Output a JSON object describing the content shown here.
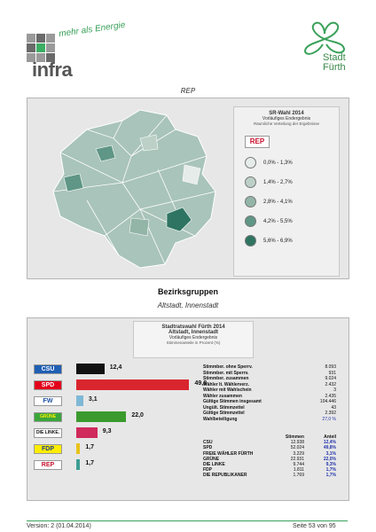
{
  "header": {
    "brand": "infra",
    "slogan": "mehr als Energie",
    "city_line1": "Stadt",
    "city_line2": "Fürth"
  },
  "map_section": {
    "caption": "REP",
    "legend_title": "SR-Wahl 2014",
    "legend_subtitle": "Vorläufiges Endergebnis",
    "legend_note": "Räumliche Verteilung der Ergebnisse",
    "legend_items": [
      {
        "label": "0,0% - 1,3%",
        "color": "#e6ece9"
      },
      {
        "label": "1,4% - 2,7%",
        "color": "#bcd0c8"
      },
      {
        "label": "2,8% - 4,1%",
        "color": "#92b5a8"
      },
      {
        "label": "4,2% - 5,5%",
        "color": "#5f9686"
      },
      {
        "label": "5,6% - 6,9%",
        "color": "#2f7462"
      }
    ]
  },
  "district": {
    "heading": "Bezirksgruppen",
    "subheading": "Altstadt, Innenstadt",
    "box_title1": "Stadtratswahl Fürth 2014",
    "box_title2": "Altstadt, Innenstadt",
    "box_title3": "Vorläufiges Endergebnis",
    "box_note": "Stimmenanteile in Prozent (%)"
  },
  "chart_data": {
    "type": "bar",
    "categories": [
      "CSU",
      "SPD",
      "FW",
      "GRÜNE",
      "DIE LINKE.",
      "FDP",
      "REP"
    ],
    "values": [
      12.4,
      49.8,
      3.1,
      22.0,
      9.3,
      1.7,
      1.7
    ],
    "value_labels": [
      "12,4",
      "49,8",
      "3,1",
      "22,0",
      "9,3",
      "1,7",
      "1,7"
    ],
    "colors": [
      "#111111",
      "#d9262e",
      "#7fb8d6",
      "#3b9a2e",
      "#cf2a5b",
      "#e8c21a",
      "#3d9e93"
    ],
    "logos": [
      {
        "text": "CSU",
        "bg": "#1f5fb4",
        "fg": "#ffffff"
      },
      {
        "text": "SPD",
        "bg": "#e3001b",
        "fg": "#ffffff"
      },
      {
        "text": "FW",
        "bg": "#ffffff",
        "fg": "#1a4fa0"
      },
      {
        "text": "GRÜNE",
        "bg": "#3aa63a",
        "fg": "#ffee00"
      },
      {
        "text": "DIE LINKE.",
        "bg": "#ffffff",
        "fg": "#111111"
      },
      {
        "text": "FDP",
        "bg": "#ffed00",
        "fg": "#1a3d8f"
      },
      {
        "text": "REP",
        "bg": "#ffffff",
        "fg": "#c8102e"
      }
    ],
    "xlim": [
      0,
      50
    ]
  },
  "stats": [
    {
      "label": "Stimmber. ohne Sperrv.",
      "value": "8.093"
    },
    {
      "label": "Stimmber. mit Sperrv.",
      "value": "931"
    },
    {
      "label": "Stimmber. zusammen",
      "value": "9.024"
    },
    {
      "label": "Wähler lt. Wählerverz.",
      "value": "2.432"
    },
    {
      "label": "Wähler mit Wahlschein",
      "value": "3"
    },
    {
      "label": "Wähler zusammen",
      "value": "2.435"
    },
    {
      "label": "Gültige Stimmen insgesamt",
      "value": "104.446"
    },
    {
      "label": "Ungült. Stimmzettel",
      "value": "43"
    },
    {
      "label": "Gültige Stimmzettel",
      "value": "2.392"
    },
    {
      "label": "Wahlbeteiligung",
      "value": "27,0 %"
    }
  ],
  "vote_table": {
    "col_votes": "Stimmen",
    "col_pct": "Anteil",
    "rows": [
      {
        "party": "CSU",
        "votes": "12.938",
        "pct": "12,4%"
      },
      {
        "party": "SPD",
        "votes": "52.024",
        "pct": "49,8%"
      },
      {
        "party": "FREIE WÄHLER FÜRTH",
        "votes": "3.229",
        "pct": "3,1%"
      },
      {
        "party": "GRÜNE",
        "votes": "22.931",
        "pct": "22,0%"
      },
      {
        "party": "DIE LINKE",
        "votes": "9.744",
        "pct": "9,3%"
      },
      {
        "party": "FDP",
        "votes": "1.811",
        "pct": "1,7%"
      },
      {
        "party": "DIE REPUBLIKANER",
        "votes": "1.769",
        "pct": "1,7%"
      }
    ]
  },
  "footer": {
    "version": "Version: 2 (01.04.2014)",
    "page": "Seite 53 von 95"
  }
}
